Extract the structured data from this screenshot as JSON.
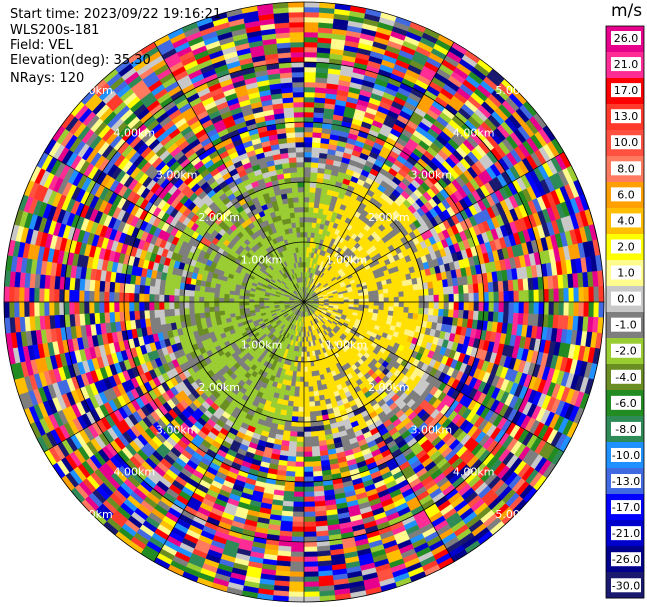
{
  "header": {
    "start_time": "Start time: 2023/09/22 19:16:21",
    "instrument": "WLS200s-181",
    "field": "Field: VEL",
    "elevation": "Elevation(deg): 35.30",
    "nrays": "NRays: 120"
  },
  "colorbar": {
    "unit": "m/s",
    "ticks": [
      "26.0",
      "21.0",
      "17.0",
      "13.0",
      "10.0",
      "8.0",
      "6.0",
      "4.0",
      "2.0",
      "1.0",
      "0.0",
      "-1.0",
      "-2.0",
      "-4.0",
      "-6.0",
      "-8.0",
      "-10.0",
      "-13.0",
      "-17.0",
      "-21.0",
      "-26.0",
      "-30.0"
    ],
    "bands": [
      "#e6008c",
      "#ff2c96",
      "#ff0000",
      "#ff3a2a",
      "#ff5040",
      "#ff7a5e",
      "#ffa000",
      "#ffbe00",
      "#ffff00",
      "#fffb8c",
      "#c8c8c8",
      "#7e7e7e",
      "#9acd32",
      "#6b8e23",
      "#228b22",
      "#2e8b57",
      "#1e90ff",
      "#4169e1",
      "#0000ff",
      "#0000cd",
      "#00008b",
      "#191970"
    ]
  },
  "chart_data": {
    "type": "ppi",
    "field": "VEL",
    "nrays": 120,
    "range_ring_labels": [
      "1.00km",
      "2.00km",
      "3.00km",
      "4.00km",
      "5.00km"
    ],
    "range_rings_km": [
      1,
      2,
      3,
      4,
      5
    ],
    "max_range_km": 5,
    "spoke_step_deg": 30,
    "vmin": -30,
    "vmax": 26
  }
}
